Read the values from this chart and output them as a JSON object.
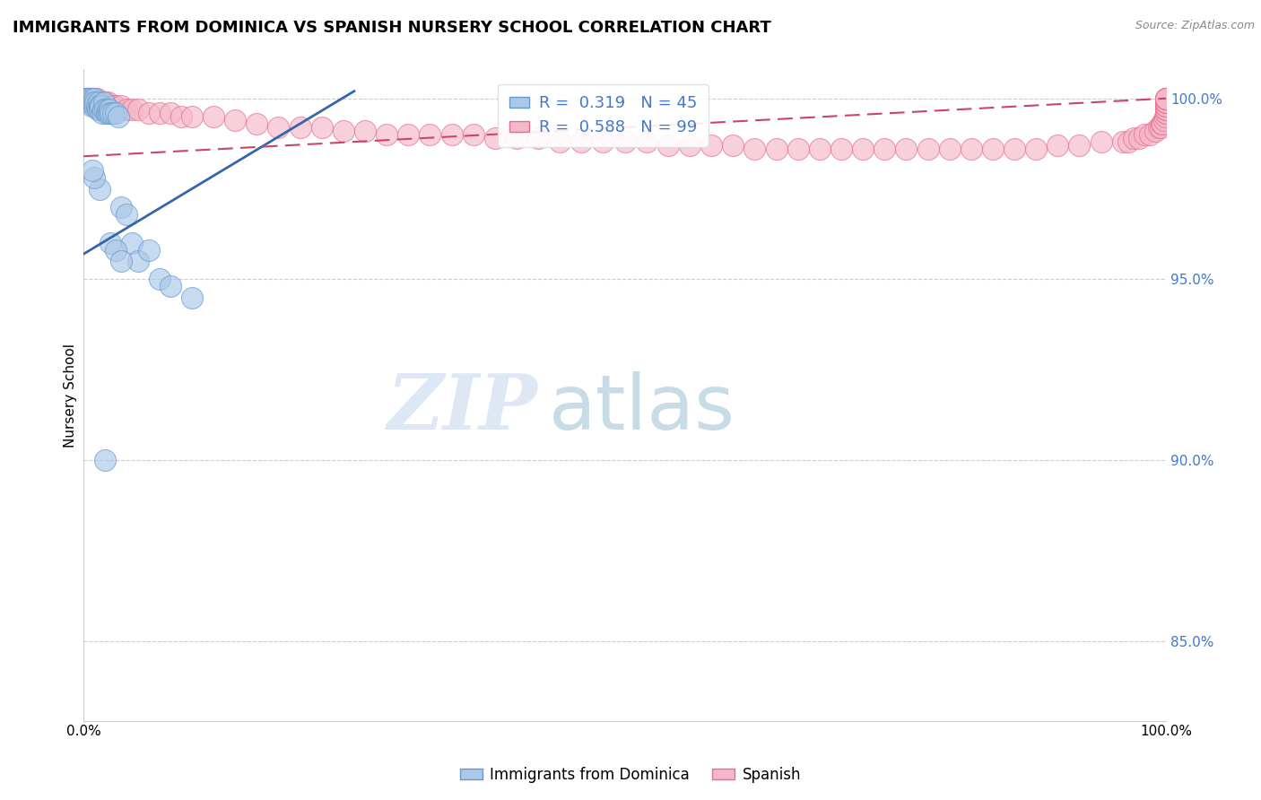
{
  "title": "IMMIGRANTS FROM DOMINICA VS SPANISH NURSERY SCHOOL CORRELATION CHART",
  "source": "Source: ZipAtlas.com",
  "ylabel": "Nursery School",
  "xlim": [
    0.0,
    1.0
  ],
  "ylim": [
    0.828,
    1.008
  ],
  "yticks": [
    0.85,
    0.9,
    0.95,
    1.0
  ],
  "ytick_labels": [
    "85.0%",
    "90.0%",
    "95.0%",
    "100.0%"
  ],
  "xticks": [
    0.0,
    0.25,
    0.5,
    0.75,
    1.0
  ],
  "xtick_labels": [
    "0.0%",
    "",
    "",
    "",
    "100.0%"
  ],
  "blue_R": 0.319,
  "blue_N": 45,
  "pink_R": 0.588,
  "pink_N": 99,
  "blue_color": "#aac8e8",
  "pink_color": "#f5b8c8",
  "blue_edge_color": "#6699cc",
  "pink_edge_color": "#e07090",
  "blue_line_color": "#3366aa",
  "pink_line_color": "#cc4466",
  "legend_blue_label": "Immigrants from Dominica",
  "legend_pink_label": "Spanish",
  "watermark_zip": "ZIP",
  "watermark_atlas": "atlas",
  "blue_x": [
    0.003,
    0.004,
    0.005,
    0.005,
    0.006,
    0.007,
    0.007,
    0.008,
    0.009,
    0.01,
    0.01,
    0.011,
    0.012,
    0.013,
    0.014,
    0.015,
    0.015,
    0.016,
    0.017,
    0.018,
    0.019,
    0.02,
    0.021,
    0.022,
    0.023,
    0.024,
    0.025,
    0.027,
    0.03,
    0.032,
    0.035,
    0.04,
    0.045,
    0.05,
    0.06,
    0.07,
    0.08,
    0.1,
    0.02,
    0.025,
    0.03,
    0.035,
    0.015,
    0.01,
    0.008
  ],
  "blue_y": [
    1.0,
    1.0,
    1.0,
    0.999,
    0.999,
    1.0,
    0.998,
    0.999,
    0.999,
    1.0,
    0.998,
    0.999,
    0.998,
    0.997,
    0.999,
    0.998,
    0.997,
    0.998,
    0.996,
    0.997,
    0.999,
    0.997,
    0.996,
    0.997,
    0.996,
    0.997,
    0.996,
    0.996,
    0.996,
    0.995,
    0.97,
    0.968,
    0.96,
    0.955,
    0.958,
    0.95,
    0.948,
    0.945,
    0.9,
    0.96,
    0.958,
    0.955,
    0.975,
    0.978,
    0.98
  ],
  "pink_x": [
    0.003,
    0.004,
    0.005,
    0.006,
    0.007,
    0.008,
    0.009,
    0.01,
    0.011,
    0.012,
    0.013,
    0.014,
    0.015,
    0.016,
    0.018,
    0.02,
    0.022,
    0.025,
    0.028,
    0.03,
    0.035,
    0.04,
    0.045,
    0.05,
    0.06,
    0.07,
    0.08,
    0.09,
    0.1,
    0.12,
    0.14,
    0.16,
    0.18,
    0.2,
    0.22,
    0.24,
    0.26,
    0.28,
    0.3,
    0.32,
    0.34,
    0.36,
    0.38,
    0.4,
    0.42,
    0.44,
    0.46,
    0.48,
    0.5,
    0.52,
    0.54,
    0.56,
    0.58,
    0.6,
    0.62,
    0.64,
    0.66,
    0.68,
    0.7,
    0.72,
    0.74,
    0.76,
    0.78,
    0.8,
    0.82,
    0.84,
    0.86,
    0.88,
    0.9,
    0.92,
    0.94,
    0.96,
    0.965,
    0.97,
    0.975,
    0.98,
    0.985,
    0.99,
    0.993,
    0.995,
    0.996,
    0.997,
    0.998,
    0.999,
    1.0,
    1.0,
    1.0,
    1.0,
    1.0,
    1.0,
    1.0,
    1.0,
    1.0,
    1.0,
    1.0,
    1.0,
    1.0,
    1.0,
    1.0
  ],
  "pink_y": [
    1.0,
    1.0,
    1.0,
    1.0,
    1.0,
    1.0,
    1.0,
    1.0,
    1.0,
    1.0,
    0.999,
    0.999,
    0.999,
    0.999,
    0.999,
    0.999,
    0.999,
    0.998,
    0.998,
    0.998,
    0.998,
    0.997,
    0.997,
    0.997,
    0.996,
    0.996,
    0.996,
    0.995,
    0.995,
    0.995,
    0.994,
    0.993,
    0.992,
    0.992,
    0.992,
    0.991,
    0.991,
    0.99,
    0.99,
    0.99,
    0.99,
    0.99,
    0.989,
    0.989,
    0.989,
    0.988,
    0.988,
    0.988,
    0.988,
    0.988,
    0.987,
    0.987,
    0.987,
    0.987,
    0.986,
    0.986,
    0.986,
    0.986,
    0.986,
    0.986,
    0.986,
    0.986,
    0.986,
    0.986,
    0.986,
    0.986,
    0.986,
    0.986,
    0.987,
    0.987,
    0.988,
    0.988,
    0.988,
    0.989,
    0.989,
    0.99,
    0.99,
    0.991,
    0.992,
    0.992,
    0.993,
    0.993,
    0.994,
    0.995,
    0.996,
    0.996,
    0.997,
    0.997,
    0.998,
    0.998,
    0.999,
    0.999,
    0.999,
    0.999,
    1.0,
    1.0,
    1.0,
    1.0,
    1.0
  ]
}
